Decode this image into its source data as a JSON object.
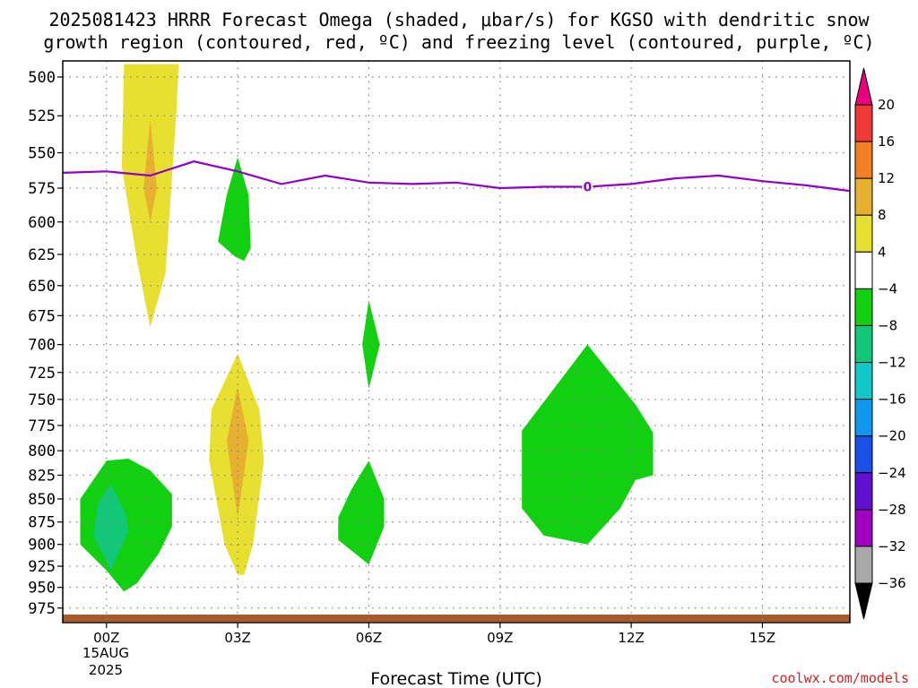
{
  "title": {
    "line1": "2025081423 HRRR Forecast Omega (shaded, μbar/s) for KGSO with dendritic snow",
    "line2": "growth region (contoured, red, ºC) and freezing level (contoured, purple, ºC)"
  },
  "credit": "coolwx.com/models",
  "chart_data": {
    "type": "filled-contour time-height cross section",
    "title": "2025081423 HRRR Forecast Omega (shaded, μbar/s) for KGSO with dendritic snow growth region (contoured, red, ºC) and freezing level (contoured, purple, ºC)",
    "xlabel": "Forecast Time (UTC)",
    "x_ticks": [
      "00Z",
      "03Z",
      "06Z",
      "09Z",
      "12Z",
      "15Z"
    ],
    "x_tick_hours": [
      0,
      3,
      6,
      9,
      12,
      15
    ],
    "x_date_label": [
      "15AUG",
      "2025"
    ],
    "x_range_hours": [
      -1,
      17
    ],
    "ylabel": "",
    "y_ticks": [
      500,
      525,
      550,
      575,
      600,
      625,
      650,
      675,
      700,
      725,
      750,
      775,
      800,
      825,
      850,
      875,
      900,
      925,
      950,
      975
    ],
    "y_range_hPa": [
      490,
      993
    ],
    "y_scale": "log-pressure (inverted)",
    "grid": true,
    "colorbar": {
      "levels": [
        "20",
        "16",
        "12",
        "8",
        "4",
        "−4",
        "−8",
        "−12",
        "−16",
        "−20",
        "−24",
        "−28",
        "−32",
        "−36"
      ],
      "colors": [
        "#e8007c",
        "#f03838",
        "#f08020",
        "#e8b030",
        "#e8e030",
        "#ffffff",
        "#10d010",
        "#10c878",
        "#10c8c8",
        "#1098f0",
        "#1850e8",
        "#6010d0",
        "#a000c0",
        "#a8a8a8",
        "#000000"
      ]
    },
    "freezing_level": {
      "label": "0",
      "color": "#9000c8",
      "hours": [
        -1,
        0,
        1,
        2,
        3,
        4,
        5,
        6,
        7,
        8,
        9,
        10,
        11,
        12,
        13,
        14,
        15,
        16,
        17
      ],
      "pressure_hPa": [
        564,
        563,
        566,
        556,
        563,
        572,
        566,
        571,
        572,
        571,
        575,
        574,
        574,
        572,
        568,
        566,
        570,
        573,
        577
      ]
    },
    "shaded_regions": [
      {
        "name": "omega-4-8-col1",
        "color": "#e8e030",
        "points": [
          [
            0.6,
            492
          ],
          [
            1.65,
            492
          ],
          [
            1.6,
            522
          ],
          [
            1.35,
            640
          ],
          [
            1.0,
            685
          ],
          [
            0.7,
            630
          ],
          [
            0.35,
            560
          ],
          [
            0.4,
            492
          ]
        ]
      },
      {
        "name": "omega-8-12-col1",
        "color": "#e8b030",
        "points": [
          [
            1.0,
            527
          ],
          [
            1.15,
            575
          ],
          [
            1.0,
            600
          ],
          [
            0.85,
            575
          ]
        ]
      },
      {
        "name": "omega-4-8-col2",
        "color": "#e8e030",
        "points": [
          [
            3.0,
            708
          ],
          [
            3.5,
            760
          ],
          [
            3.6,
            810
          ],
          [
            3.35,
            900
          ],
          [
            3.15,
            935
          ],
          [
            3.0,
            935
          ],
          [
            2.7,
            900
          ],
          [
            2.35,
            810
          ],
          [
            2.4,
            760
          ]
        ]
      },
      {
        "name": "omega-8-12-col2",
        "color": "#e8b030",
        "points": [
          [
            3.0,
            738
          ],
          [
            3.25,
            790
          ],
          [
            3.0,
            870
          ],
          [
            2.75,
            790
          ]
        ]
      },
      {
        "name": "omega-neg4-8-upper",
        "color": "#10d010",
        "points": [
          [
            3.0,
            553
          ],
          [
            3.25,
            580
          ],
          [
            3.3,
            620
          ],
          [
            3.15,
            630
          ],
          [
            2.95,
            627
          ],
          [
            2.55,
            615
          ],
          [
            2.75,
            580
          ]
        ]
      },
      {
        "name": "omega-neg4-8-mid",
        "color": "#10d010",
        "points": [
          [
            6.0,
            662
          ],
          [
            6.25,
            700
          ],
          [
            6.0,
            740
          ],
          [
            5.85,
            700
          ]
        ]
      },
      {
        "name": "omega-neg4-8-lower",
        "color": "#10d010",
        "points": [
          [
            6.0,
            810
          ],
          [
            6.35,
            850
          ],
          [
            6.35,
            880
          ],
          [
            6.0,
            923
          ],
          [
            5.3,
            895
          ],
          [
            5.3,
            870
          ],
          [
            5.6,
            840
          ]
        ]
      },
      {
        "name": "omega-neg4-8-large",
        "color": "#10d010",
        "points": [
          [
            11.0,
            700
          ],
          [
            12.1,
            755
          ],
          [
            12.5,
            782
          ],
          [
            12.5,
            825
          ],
          [
            12.1,
            830
          ],
          [
            11.75,
            860
          ],
          [
            11.0,
            900
          ],
          [
            10.0,
            890
          ],
          [
            9.5,
            860
          ],
          [
            9.5,
            780
          ]
        ]
      },
      {
        "name": "omega-neg4-8-sfc",
        "color": "#10d010",
        "points": [
          [
            0.5,
            808
          ],
          [
            1.0,
            820
          ],
          [
            1.5,
            845
          ],
          [
            1.5,
            880
          ],
          [
            1.2,
            910
          ],
          [
            0.7,
            945
          ],
          [
            0.4,
            955
          ],
          [
            0.0,
            930
          ],
          [
            -0.6,
            900
          ],
          [
            -0.6,
            850
          ],
          [
            0.0,
            810
          ]
        ]
      },
      {
        "name": "omega-neg8-12-sfc",
        "color": "#10c878",
        "points": [
          [
            0.1,
            834
          ],
          [
            0.45,
            868
          ],
          [
            0.5,
            885
          ],
          [
            0.1,
            930
          ],
          [
            -0.3,
            890
          ],
          [
            -0.2,
            855
          ]
        ]
      }
    ],
    "terrain": {
      "color": "#a85a2a",
      "surface_hPa_top": 983,
      "surface_hPa_bottom": 992
    }
  }
}
